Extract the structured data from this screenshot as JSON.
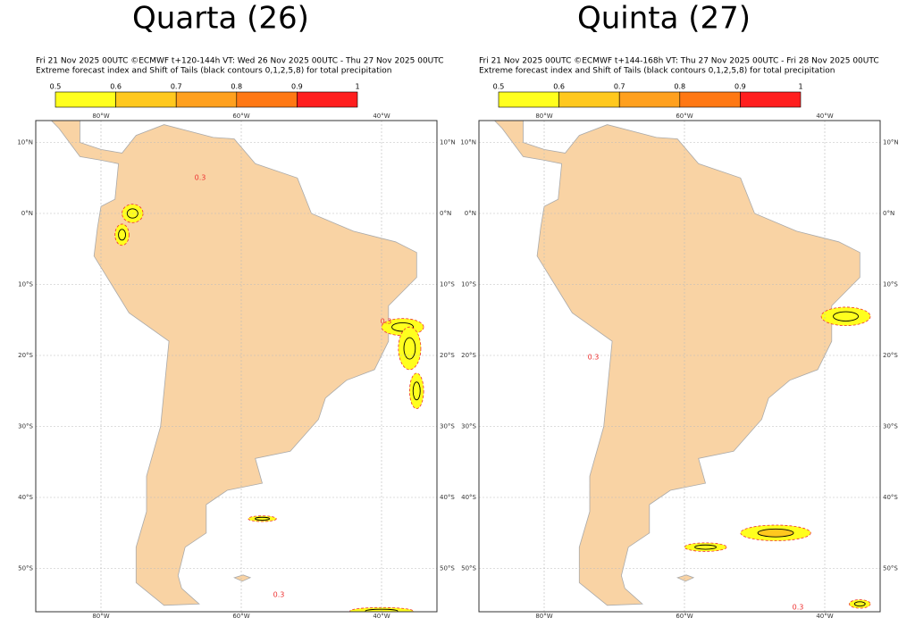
{
  "panels": [
    {
      "title": "Quarta (26)",
      "header": [
        "Fri 21 Nov 2025 00UTC ©ECMWF t+120-144h  VT: Wed 26 Nov 2025 00UTC - Thu 27 Nov 2025 00UTC",
        "Extreme forecast index and Shift of Tails (black contours 0,1,2,5,8) for total precipitation"
      ],
      "colorbar": {
        "ticks": [
          0.5,
          0.6,
          0.7,
          0.8,
          0.9,
          1
        ],
        "colors": [
          "#ffff1e",
          "#ffc81e",
          "#ffa01e",
          "#ff7814",
          "#ff1e1e"
        ]
      },
      "lon_labels": [
        "80°W",
        "60°W",
        "40°W"
      ],
      "lat_labels": [
        "10°N",
        "0°N",
        "10°S",
        "20°S",
        "30°S",
        "40°S",
        "50°S"
      ],
      "contour_labels": [
        "0.3",
        "0.3",
        "0.3"
      ]
    },
    {
      "title": "Quinta (27)",
      "header": [
        "Fri 21 Nov 2025 00UTC ©ECMWF t+144-168h  VT: Thu 27 Nov 2025 00UTC - Fri 28 Nov 2025 00UTC",
        "Extreme forecast index and Shift of Tails (black contours 0,1,2,5,8) for total precipitation"
      ],
      "colorbar": {
        "ticks": [
          0.5,
          0.6,
          0.7,
          0.8,
          0.9,
          1
        ],
        "colors": [
          "#ffff1e",
          "#ffc81e",
          "#ffa01e",
          "#ff7814",
          "#ff1e1e"
        ]
      },
      "lon_labels": [
        "80°W",
        "60°W",
        "40°W"
      ],
      "lat_labels": [
        "10°N",
        "0°N",
        "10°S",
        "20°S",
        "30°S",
        "40°S",
        "50°S"
      ],
      "contour_labels": [
        "0.3",
        "0.3"
      ]
    }
  ]
}
